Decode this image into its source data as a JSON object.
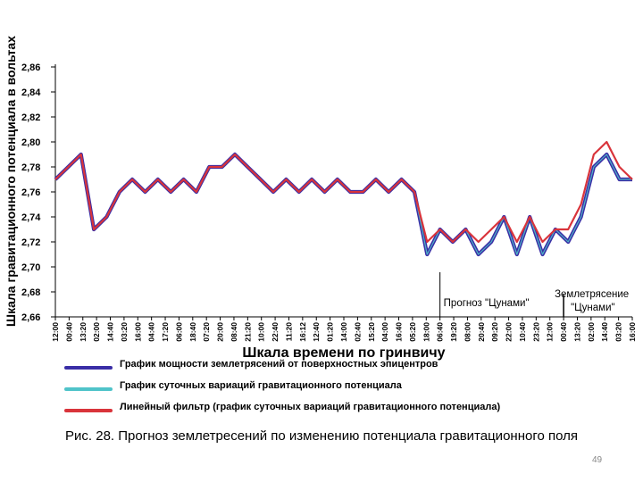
{
  "chart_data": {
    "type": "line",
    "ylabel": "Шкала гравитационного потенциала в вольтах",
    "xlabel": "Шкала времени по гринвичу",
    "ylim": [
      2.66,
      2.86
    ],
    "yticks": [
      "2,86",
      "2,84",
      "2,82",
      "2,80",
      "2,78",
      "2,76",
      "2,74",
      "2,72",
      "2,70",
      "2,68",
      "2,66"
    ],
    "ytick_values": [
      2.86,
      2.84,
      2.82,
      2.8,
      2.78,
      2.76,
      2.74,
      2.72,
      2.7,
      2.68,
      2.66
    ],
    "xticks": [
      "12:00",
      "00:40",
      "13:20",
      "02:00",
      "14:40",
      "03:20",
      "16:00",
      "04:40",
      "17:20",
      "06:00",
      "18:40",
      "07:20",
      "20:00",
      "08:40",
      "21:20",
      "10:00",
      "22:40",
      "11:20",
      "16:12",
      "12:40",
      "01:20",
      "14:00",
      "02:40",
      "15:20",
      "04:00",
      "16:40",
      "05:20",
      "18:00",
      "06:40",
      "19:20",
      "08:00",
      "20:40",
      "09:20",
      "22:00",
      "10:40",
      "23:20",
      "12:00",
      "00:40",
      "13:20",
      "02:00",
      "14:40",
      "03:20",
      "16:00"
    ],
    "series": [
      {
        "key": "power",
        "color": "#3a2ea6",
        "values": [
          2.77,
          2.78,
          2.79,
          2.73,
          2.74,
          2.76,
          2.77,
          2.76,
          2.77,
          2.76,
          2.77,
          2.76,
          2.78,
          2.78,
          2.79,
          2.78,
          2.77,
          2.76,
          2.77,
          2.76,
          2.77,
          2.76,
          2.77,
          2.76,
          2.76,
          2.77,
          2.76,
          2.77,
          2.76,
          2.71,
          2.73,
          2.72,
          2.73,
          2.71,
          2.72,
          2.74,
          2.71,
          2.74,
          2.71,
          2.73,
          2.72,
          2.74,
          2.78,
          2.79,
          2.77,
          2.77
        ]
      },
      {
        "key": "daily",
        "color": "#4fc3c9",
        "values": [
          2.77,
          2.78,
          2.79,
          2.73,
          2.74,
          2.76,
          2.77,
          2.76,
          2.77,
          2.76,
          2.77,
          2.76,
          2.78,
          2.78,
          2.79,
          2.78,
          2.77,
          2.76,
          2.77,
          2.76,
          2.77,
          2.76,
          2.77,
          2.76,
          2.76,
          2.77,
          2.76,
          2.77,
          2.76,
          2.71,
          2.73,
          2.72,
          2.73,
          2.71,
          2.72,
          2.74,
          2.71,
          2.74,
          2.71,
          2.73,
          2.72,
          2.74,
          2.78,
          2.79,
          2.77,
          2.77
        ]
      },
      {
        "key": "filter",
        "color": "#d9343b",
        "values": [
          2.77,
          2.78,
          2.79,
          2.73,
          2.74,
          2.76,
          2.77,
          2.76,
          2.77,
          2.76,
          2.77,
          2.76,
          2.78,
          2.78,
          2.79,
          2.78,
          2.77,
          2.76,
          2.77,
          2.76,
          2.77,
          2.76,
          2.77,
          2.76,
          2.76,
          2.77,
          2.76,
          2.77,
          2.76,
          2.72,
          2.73,
          2.72,
          2.73,
          2.72,
          2.73,
          2.74,
          2.72,
          2.74,
          2.72,
          2.73,
          2.73,
          2.75,
          2.79,
          2.8,
          2.78,
          2.77
        ]
      }
    ],
    "annotations": [
      {
        "text": "Прогноз \"Цунами\"",
        "x_tick": "06:40"
      },
      {
        "text": "Землетрясение \"Цунами\"",
        "x_tick": "00:40"
      }
    ]
  },
  "legend": [
    {
      "label": "График мощности землетрясений от поверхностных эпицентров",
      "color": "#3a2ea6"
    },
    {
      "label": "График суточных вариаций гравитационного потенциала",
      "color": "#4fc3c9"
    },
    {
      "label": "Линейный фильтр (график суточных вариаций гравитационного потенциала)",
      "color": "#d9343b"
    }
  ],
  "annotation_forecast": "Прогноз \"Цунами\"",
  "annotation_quake_line1": "Землетрясение",
  "annotation_quake_line2": "\"Цунами\"",
  "caption": "Рис. 28. Прогноз землетресений по изменению потенциала гравитационного поля",
  "page_number": "49"
}
